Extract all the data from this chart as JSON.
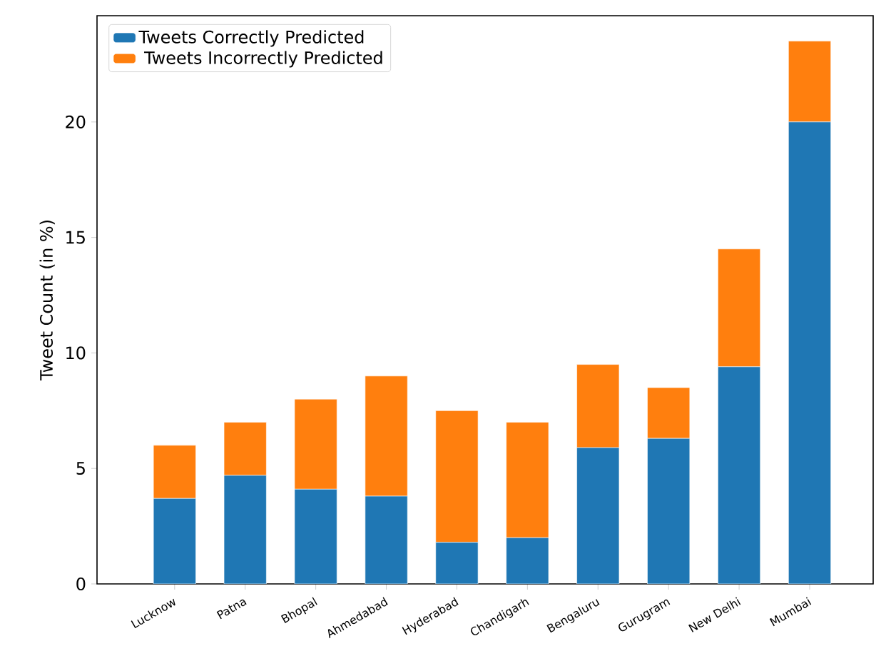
{
  "chart_data": {
    "type": "bar",
    "stacked": true,
    "ylabel": "Tweet Count (in %)",
    "categories": [
      "Lucknow",
      "Patna",
      "Bhopal",
      "Ahmedabad",
      "Hyderabad",
      "Chandigarh",
      "Bengaluru",
      "Gurugram",
      "New Delhi",
      "Mumbai"
    ],
    "series": [
      {
        "name": "Tweets Correctly Predicted",
        "color": "#1f77b4",
        "values": [
          3.7,
          4.7,
          4.1,
          3.8,
          1.8,
          2.0,
          5.9,
          6.3,
          9.4,
          20.0
        ]
      },
      {
        "name": " Tweets Incorrectly Predicted",
        "color": "#ff7f0e",
        "values": [
          2.3,
          2.3,
          3.9,
          5.2,
          5.7,
          5.0,
          3.6,
          2.2,
          5.1,
          3.5
        ]
      }
    ],
    "ylim": [
      0,
      24.6
    ],
    "yticks": [
      0,
      5,
      10,
      15,
      20
    ],
    "grid": false,
    "legend": "top left"
  }
}
